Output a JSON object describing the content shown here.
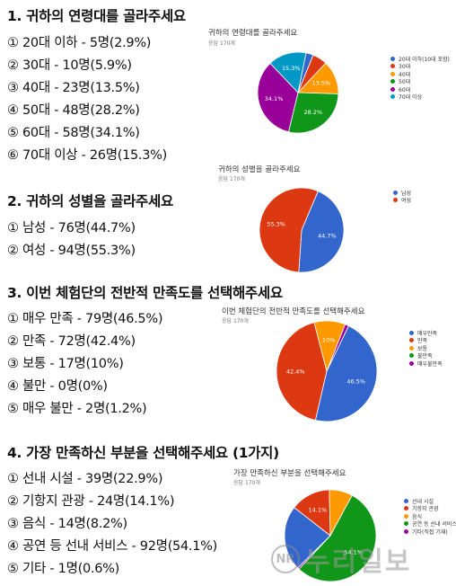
{
  "colors": {
    "blue": "#3366cc",
    "red": "#dc3912",
    "orange": "#ff9900",
    "green": "#109618",
    "purple": "#990099",
    "teal": "#0099c6"
  },
  "questions": [
    {
      "title": "1. 귀하의 연령대를 골라주세요",
      "answers": [
        "① 20대 이하 - 5명(2.9%)",
        "② 30대 - 10명(5.9%)",
        "③ 40대 - 23명(13.5%)",
        "④ 50대 - 48명(28.2%)",
        "⑤ 60대 - 58명(34.1%)",
        "⑥ 70대 이상 - 26명(15.3%)"
      ]
    },
    {
      "title": "2. 귀하의 성별을 골라주세요",
      "answers": [
        "① 남성 - 76명(44.7%)",
        "② 여성 - 94명(55.3%)"
      ]
    },
    {
      "title": "3. 이번 체험단의 전반적 만족도를 선택해주세요",
      "answers": [
        "① 매우 만족 - 79명(46.5%)",
        "② 만족 - 72명(42.4%)",
        "③ 보통 - 17명(10%)",
        "④ 불만 - 0명(0%)",
        "⑤ 매우 불만 - 2명(1.2%)"
      ]
    },
    {
      "title": "4. 가장 만족하신 부분을 선택해주세요 (1가지)",
      "answers": [
        "① 선내 시설 - 39명(22.9%)",
        "② 기항지 관광 - 24명(14.1%)",
        "③ 음식 - 14명(8.2%)",
        "④ 공연 등 선내 서비스 - 92명(54.1%)",
        "⑤ 기타 - 1명(0.6%)"
      ]
    }
  ],
  "chart_data": [
    {
      "type": "pie",
      "title": "귀하의 연령대를 골라주세요",
      "subtitle": "응답 170개",
      "categories": [
        "20대 이하(10대 포함)",
        "30대",
        "40대",
        "50대",
        "60대",
        "70대 이상"
      ],
      "values": [
        5,
        10,
        23,
        48,
        58,
        26
      ],
      "colors": [
        "#3366cc",
        "#dc3912",
        "#ff9900",
        "#109618",
        "#990099",
        "#0099c6"
      ],
      "slice_labels": [
        "",
        "",
        "13.5%",
        "28.2%",
        "34.1%",
        "15.3%"
      ],
      "legend": "right"
    },
    {
      "type": "pie",
      "title": "귀하의 성별을 골라주세요",
      "subtitle": "응답 170개",
      "categories": [
        "남성",
        "여성"
      ],
      "values": [
        76,
        94
      ],
      "colors": [
        "#3366cc",
        "#dc3912"
      ],
      "slice_labels": [
        "44.7%",
        "55.3%"
      ],
      "legend": "right"
    },
    {
      "type": "pie",
      "title": "이번 체험단의 전반적 만족도를 선택해주세요",
      "subtitle": "응답 170개",
      "categories": [
        "매우만족",
        "만족",
        "보통",
        "불만족",
        "매우불만족"
      ],
      "values": [
        79,
        72,
        17,
        0,
        2
      ],
      "colors": [
        "#3366cc",
        "#dc3912",
        "#ff9900",
        "#109618",
        "#990099"
      ],
      "slice_labels": [
        "46.5%",
        "42.4%",
        "10%",
        "",
        ""
      ],
      "legend": "right"
    },
    {
      "type": "pie",
      "title": "가장 만족하신 부분을 선택해주세요",
      "subtitle": "응답 170개",
      "categories": [
        "선내 시설",
        "기항지 관광",
        "음식",
        "공연 등 선내 서비스",
        "기타(직접 기재)"
      ],
      "values": [
        39,
        24,
        14,
        92,
        1
      ],
      "colors": [
        "#3366cc",
        "#dc3912",
        "#ff9900",
        "#109618",
        "#990099"
      ],
      "slice_labels": [
        "",
        "14.1%",
        "",
        "54.1%",
        ""
      ],
      "legend": "right"
    }
  ],
  "watermark": {
    "logo": "NR",
    "text": "누리일보"
  }
}
